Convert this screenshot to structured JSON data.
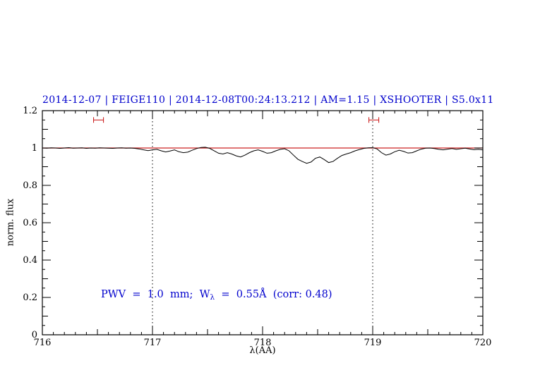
{
  "colors": {
    "title": "#0000cd",
    "annotation": "#0000cd",
    "continuum": "#cc2222",
    "marker": "#cc2222",
    "trace": "#000000",
    "frame": "#000000",
    "vline": "#000000"
  },
  "annotation": {
    "prefix": "PWV  =  1.0  mm;  W",
    "subscript": "λ",
    "suffix": "  =  0.55Å  (corr: 0.48)"
  },
  "chart_data": {
    "type": "line",
    "title": "2014-12-07 | FEIGE110 | 2014-12-08T00:24:13.212 | AM=1.15 | XSHOOTER | S5.0x11",
    "xlabel": "λ(AA)",
    "ylabel": "norm. flux",
    "xlim": [
      716,
      720
    ],
    "ylim": [
      0,
      1.2
    ],
    "x_ticks": [
      716,
      717,
      718,
      719,
      720
    ],
    "x_tick_labels": [
      "716",
      "717",
      "718",
      "719",
      "720"
    ],
    "y_ticks": [
      0,
      0.2,
      0.4,
      0.6,
      0.8,
      1.0,
      1.2
    ],
    "y_tick_labels": [
      "0",
      "0.2",
      "0.4",
      "0.6",
      "0.8",
      "1",
      "1.2"
    ],
    "x_minor_step": 0.1,
    "y_minor_step": 0.05,
    "grid": false,
    "legend": "none",
    "vlines": [
      717,
      719
    ],
    "continuum_y": 1.0,
    "markers": [
      {
        "x": 716.51,
        "y": 1.15,
        "halfwidth": 0.045
      },
      {
        "x": 719.01,
        "y": 1.15,
        "halfwidth": 0.045
      }
    ],
    "series": [
      {
        "name": "spectrum",
        "x_start": 716.0,
        "x_step": 0.04,
        "values": [
          1.0,
          0.999,
          1.001,
          1.0,
          0.998,
          1.0,
          1.002,
          0.999,
          1.0,
          1.001,
          0.998,
          1.0,
          0.999,
          1.001,
          1.0,
          0.999,
          0.998,
          1.0,
          1.001,
          0.999,
          1.0,
          0.998,
          0.995,
          0.99,
          0.986,
          0.99,
          0.993,
          0.985,
          0.979,
          0.984,
          0.99,
          0.98,
          0.975,
          0.978,
          0.988,
          0.997,
          1.003,
          1.004,
          0.998,
          0.985,
          0.972,
          0.968,
          0.975,
          0.968,
          0.958,
          0.952,
          0.962,
          0.975,
          0.985,
          0.99,
          0.982,
          0.972,
          0.975,
          0.985,
          0.993,
          0.996,
          0.985,
          0.962,
          0.94,
          0.928,
          0.918,
          0.925,
          0.945,
          0.952,
          0.938,
          0.922,
          0.928,
          0.945,
          0.96,
          0.968,
          0.975,
          0.985,
          0.992,
          0.998,
          1.001,
          1.002,
          0.995,
          0.975,
          0.962,
          0.968,
          0.98,
          0.988,
          0.982,
          0.973,
          0.975,
          0.985,
          0.994,
          0.999,
          1.0,
          0.997,
          0.993,
          0.99,
          0.994,
          0.997,
          0.993,
          0.996,
          0.999,
          0.995,
          0.991,
          0.993,
          0.99
        ]
      }
    ]
  }
}
